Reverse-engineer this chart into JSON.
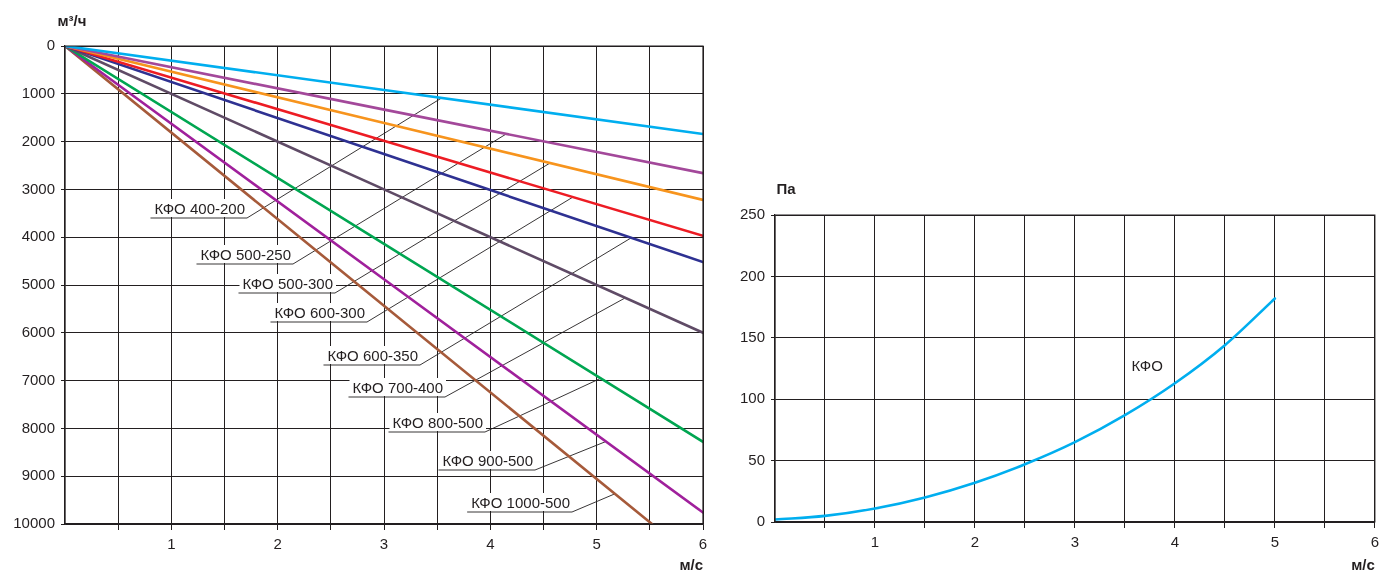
{
  "chart_data": [
    {
      "type": "line",
      "xlabel": "м/с",
      "ylabel": "м³/ч",
      "xlim": [
        0,
        6
      ],
      "xticks": [
        {
          "value": 0.5,
          "label": null
        },
        1,
        {
          "value": 1.5,
          "label": null
        },
        2,
        {
          "value": 2.5,
          "label": null
        },
        3,
        {
          "value": 3.5,
          "label": null
        },
        4,
        {
          "value": 4.5,
          "label": null
        },
        5,
        {
          "value": 5.5,
          "label": null
        },
        6
      ],
      "ylim": [
        10000,
        0
      ],
      "yticks": [
        0,
        1000,
        2000,
        3000,
        4000,
        5000,
        6000,
        7000,
        8000,
        9000,
        10000
      ],
      "grid": true,
      "legend": false,
      "marker": "none",
      "line_style": "solid",
      "series": [
        {
          "color": "#00aeef",
          "x": [
            0,
            6
          ],
          "values": [
            0,
            1840
          ]
        },
        {
          "color": "#a3489a",
          "x": [
            0,
            6
          ],
          "values": [
            0,
            2660
          ]
        },
        {
          "color": "#f7941d",
          "x": [
            0,
            6
          ],
          "values": [
            0,
            3220
          ]
        },
        {
          "color": "#ed1c24",
          "x": [
            0,
            6
          ],
          "values": [
            0,
            3970
          ]
        },
        {
          "color": "#2e3192",
          "x": [
            0,
            6
          ],
          "values": [
            0,
            4520
          ]
        },
        {
          "color": "#5f4b66",
          "x": [
            0,
            6
          ],
          "values": [
            0,
            6000
          ]
        },
        {
          "color": "#00a651",
          "x": [
            0,
            6
          ],
          "values": [
            0,
            8280
          ]
        },
        {
          "color": "#a0209c",
          "x": [
            0,
            6
          ],
          "values": [
            0,
            9760
          ]
        },
        {
          "color": "#a65a3a",
          "x": [
            0,
            5.52
          ],
          "values": [
            0,
            10000
          ]
        }
      ],
      "annotations": [
        {
          "text": "КФО 400-200",
          "x": 3.54,
          "y": 1090
        },
        {
          "text": "КФО 500-250",
          "x": 4.15,
          "y": 1840
        },
        {
          "text": "КФО 500-300",
          "x": 4.56,
          "y": 2450
        },
        {
          "text": "КФО 600-300",
          "x": 4.77,
          "y": 3170
        },
        {
          "text": "КФО 600-350",
          "x": 5.32,
          "y": 4020
        },
        {
          "text": "КФО 700-400",
          "x": 5.26,
          "y": 5280
        },
        {
          "text": "КФО 800-500",
          "x": 5.03,
          "y": 6960
        },
        {
          "text": "КФО 900-500",
          "x": 5.08,
          "y": 8280
        },
        {
          "text": "КФО 1000-500",
          "x": 5.17,
          "y": 9370
        }
      ]
    },
    {
      "type": "line",
      "xlabel": "м/с",
      "ylabel": "Па",
      "xlim": [
        0,
        6
      ],
      "xticks": [
        {
          "value": 0.5,
          "label": null
        },
        1,
        {
          "value": 1.5,
          "label": null
        },
        2,
        {
          "value": 2.5,
          "label": null
        },
        3,
        {
          "value": 3.5,
          "label": null
        },
        4,
        {
          "value": 4.5,
          "label": null
        },
        5,
        {
          "value": 5.5,
          "label": null
        },
        6
      ],
      "ylim": [
        0,
        250
      ],
      "yticks": [
        0,
        50,
        100,
        150,
        200,
        250
      ],
      "grid": true,
      "legend": false,
      "marker": "none",
      "line_style": "solid",
      "series": [
        {
          "name": "КФО",
          "color": "#00aeef",
          "x": [
            0,
            0.5,
            1,
            1.5,
            2,
            2.5,
            3,
            3.5,
            4,
            4.5,
            5
          ],
          "values": [
            2,
            5,
            11,
            20,
            32,
            47,
            65,
            87,
            113,
            144,
            182
          ]
        }
      ]
    }
  ]
}
